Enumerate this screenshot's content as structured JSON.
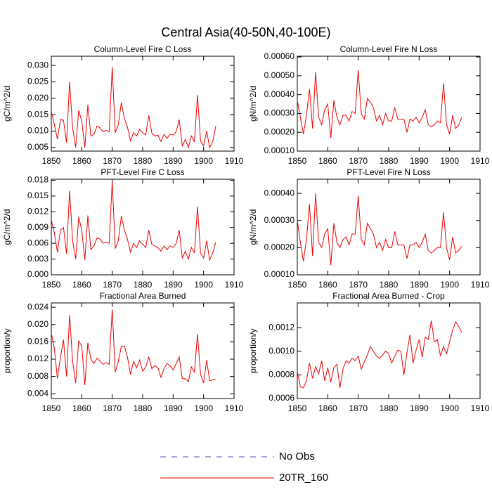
{
  "title": "Central Asia(40-50N,40-100E)",
  "legend": [
    {
      "name": "No Obs",
      "color": "#5555bb",
      "dashed": true
    },
    {
      "name": "20TR_160",
      "color": "#ee0000",
      "dashed": false
    }
  ],
  "chart_data": [
    {
      "type": "line",
      "title": "Column-Level Fire C Loss",
      "y_label": "gC/m^2/d",
      "xlim": [
        1850,
        1910
      ],
      "xticks": [
        1850,
        1860,
        1870,
        1880,
        1890,
        1900,
        1910
      ],
      "ylim": [
        0.0039,
        0.0328
      ],
      "yticks": [
        0.005,
        {
          "value": 0.01,
          "label": "0.010"
        },
        0.015,
        {
          "value": 0.02,
          "label": "0.020"
        },
        0.025,
        {
          "value": 0.03,
          "label": "0.030"
        }
      ],
      "x_start": 1850,
      "series": [
        {
          "color": "#ee0000",
          "values": [
            0.016,
            0.012,
            0.0075,
            0.0135,
            0.0133,
            0.0065,
            0.025,
            0.011,
            0.005,
            0.0163,
            0.013,
            0.005,
            0.018,
            0.0085,
            0.009,
            0.0115,
            0.011,
            0.0098,
            0.0102,
            0.0098,
            0.0295,
            0.0095,
            0.012,
            0.0187,
            0.0138,
            0.0112,
            0.007,
            0.0095,
            0.0085,
            0.0105,
            0.0095,
            0.0088,
            0.0148,
            0.0095,
            0.0085,
            0.0088,
            0.0068,
            0.009,
            0.0078,
            0.009,
            0.0088,
            0.0098,
            0.0135,
            0.0055,
            0.0075,
            0.005,
            0.0085,
            0.0068,
            0.021,
            0.007,
            0.0055,
            0.01,
            0.005,
            0.0068,
            0.0115
          ]
        }
      ]
    },
    {
      "type": "line",
      "title": "Column-Level Fire N Loss",
      "y_label": "gN/m^2/d",
      "xlim": [
        1850,
        1910
      ],
      "xticks": [
        1850,
        1860,
        1870,
        1880,
        1890,
        1900,
        1910
      ],
      "ylim": [
        0.0001,
        0.000604
      ],
      "yticks": [
        {
          "value": 0.0001,
          "label": "0.00010"
        },
        {
          "value": 0.0002,
          "label": "0.00020"
        },
        {
          "value": 0.0003,
          "label": "0.00030"
        },
        {
          "value": 0.0004,
          "label": "0.00040"
        },
        {
          "value": 0.0005,
          "label": "0.00050"
        },
        {
          "value": 0.0006,
          "label": "0.00060"
        }
      ],
      "x_start": 1850,
      "series": [
        {
          "color": "#ee0000",
          "values": [
            0.00037,
            0.00028,
            0.00019,
            0.00029,
            0.00043,
            0.00022,
            0.00052,
            0.00028,
            0.00024,
            0.00032,
            0.00035,
            0.00017,
            0.00037,
            0.00028,
            0.00024,
            0.00029,
            0.00029,
            0.00026,
            0.00031,
            0.0003,
            0.00053,
            0.0003,
            0.00027,
            0.00038,
            0.00036,
            0.00033,
            0.00026,
            0.00029,
            0.00024,
            0.0003,
            0.00026,
            0.00026,
            0.00033,
            0.00027,
            0.00027,
            0.00027,
            0.0002,
            0.00027,
            0.00026,
            0.00028,
            0.00025,
            0.00028,
            0.00032,
            0.00024,
            0.00023,
            0.00024,
            0.00026,
            0.00025,
            0.00046,
            0.00024,
            0.00019,
            0.00029,
            0.00022,
            0.00024,
            0.00028
          ]
        }
      ]
    },
    {
      "type": "line",
      "title": "PFT-Level Fire C Loss",
      "y_label": "gC/m^2/d",
      "xlim": [
        1850,
        1910
      ],
      "xticks": [
        1850,
        1860,
        1870,
        1880,
        1890,
        1900,
        1910
      ],
      "ylim": [
        0,
        0.0182
      ],
      "yticks": [
        {
          "value": 0,
          "label": "0.000"
        },
        0.003,
        0.006,
        0.009,
        0.012,
        0.015,
        0.018
      ],
      "x_start": 1850,
      "series": [
        {
          "color": "#ee0000",
          "values": [
            0.0105,
            0.008,
            0.0043,
            0.0085,
            0.009,
            0.004,
            0.016,
            0.0065,
            0.003,
            0.011,
            0.0085,
            0.0028,
            0.0113,
            0.0048,
            0.0055,
            0.007,
            0.0068,
            0.006,
            0.0062,
            0.006,
            0.0178,
            0.005,
            0.0065,
            0.0112,
            0.0085,
            0.0068,
            0.0043,
            0.006,
            0.0052,
            0.0065,
            0.0058,
            0.0052,
            0.0085,
            0.0058,
            0.0055,
            0.0052,
            0.0045,
            0.0055,
            0.0048,
            0.0055,
            0.0052,
            0.006,
            0.0085,
            0.0032,
            0.0045,
            0.003,
            0.0052,
            0.0042,
            0.013,
            0.0042,
            0.0032,
            0.0065,
            0.0028,
            0.0042,
            0.0062
          ]
        }
      ]
    },
    {
      "type": "line",
      "title": "PFT-Level Fire N Loss",
      "y_label": "gN/m^2/d",
      "xlim": [
        1850,
        1910
      ],
      "xticks": [
        1850,
        1860,
        1870,
        1880,
        1890,
        1900,
        1910
      ],
      "ylim": [
        0.0001,
        0.000452
      ],
      "yticks": [
        {
          "value": 0.0001,
          "label": "0.00010"
        },
        {
          "value": 0.0002,
          "label": "0.00020"
        },
        {
          "value": 0.0003,
          "label": "0.00030"
        },
        {
          "value": 0.0004,
          "label": "0.00040"
        }
      ],
      "x_start": 1850,
      "series": [
        {
          "color": "#ee0000",
          "values": [
            0.0003,
            0.00022,
            0.00015,
            0.00023,
            0.00036,
            0.00017,
            0.0004,
            0.00022,
            0.0002,
            0.00025,
            0.00027,
            0.000135,
            0.00029,
            0.00022,
            0.0002,
            0.00023,
            0.00024,
            0.00021,
            0.00025,
            0.00025,
            0.00039,
            0.00023,
            0.00021,
            0.00029,
            0.00027,
            0.00025,
            0.0002,
            0.00022,
            0.00019,
            0.00023,
            0.0002,
            0.0002,
            0.00026,
            0.00021,
            0.00021,
            0.00021,
            0.00016,
            0.00021,
            0.00021,
            0.00022,
            0.0002,
            0.00022,
            0.00025,
            0.00019,
            0.00018,
            0.00019,
            0.0002,
            0.0002,
            0.00033,
            0.0002,
            0.000155,
            0.00024,
            0.00018,
            0.00019,
            0.000205
          ]
        }
      ]
    },
    {
      "type": "line",
      "title": "Fractional Area Burned",
      "y_label": "proportion/y",
      "xlim": [
        1850,
        1910
      ],
      "xticks": [
        1850,
        1860,
        1870,
        1880,
        1890,
        1900,
        1910
      ],
      "ylim": [
        0.0029,
        0.025
      ],
      "yticks": [
        0.004,
        0.008,
        0.012,
        0.016,
        {
          "value": 0.02,
          "label": "0.020"
        },
        0.024
      ],
      "x_start": 1850,
      "series": [
        {
          "color": "#ee0000",
          "values": [
            0.018,
            0.0145,
            0.0075,
            0.0125,
            0.0165,
            0.008,
            0.0222,
            0.0115,
            0.0065,
            0.0162,
            0.015,
            0.006,
            0.0158,
            0.012,
            0.011,
            0.0122,
            0.0115,
            0.0108,
            0.0112,
            0.0108,
            0.0235,
            0.009,
            0.0115,
            0.015,
            0.015,
            0.0125,
            0.0085,
            0.0115,
            0.01,
            0.0118,
            0.0092,
            0.0102,
            0.0125,
            0.0098,
            0.0105,
            0.01,
            0.0078,
            0.0098,
            0.011,
            0.0105,
            0.0095,
            0.011,
            0.0125,
            0.0075,
            0.0075,
            0.0068,
            0.0102,
            0.009,
            0.0178,
            0.0085,
            0.0065,
            0.0118,
            0.007,
            0.0072,
            0.0072
          ]
        }
      ]
    },
    {
      "type": "line",
      "title": "Fractional Area Burned - Crop",
      "y_label": "proportion/y",
      "xlim": [
        1850,
        1910
      ],
      "xticks": [
        1850,
        1860,
        1870,
        1880,
        1890,
        1900,
        1910
      ],
      "ylim": [
        0.0006,
        0.00141
      ],
      "yticks": [
        0.0006,
        0.0008,
        {
          "value": 0.001,
          "label": "0.0010"
        },
        0.0012
      ],
      "x_start": 1850,
      "series": [
        {
          "color": "#ee0000",
          "values": [
            0.00083,
            0.0007,
            0.00069,
            0.00075,
            0.0009,
            0.00077,
            0.00087,
            0.00081,
            0.00092,
            0.00075,
            0.00086,
            0.00074,
            0.00086,
            0.00089,
            0.00069,
            0.00085,
            0.00092,
            0.0009,
            0.00094,
            0.00092,
            0.00096,
            0.00085,
            0.00091,
            0.00097,
            0.00104,
            0.001,
            0.00096,
            0.00094,
            0.00097,
            0.001,
            0.00098,
            0.0009,
            0.00096,
            0.00101,
            0.001,
            0.0008,
            0.00099,
            0.00114,
            0.0009,
            0.00101,
            0.0011,
            0.00095,
            0.00112,
            0.0011,
            0.00126,
            0.00108,
            0.0011,
            0.00096,
            0.00104,
            0.00098,
            0.00108,
            0.00118,
            0.00125,
            0.00121,
            0.00116
          ]
        }
      ]
    }
  ]
}
